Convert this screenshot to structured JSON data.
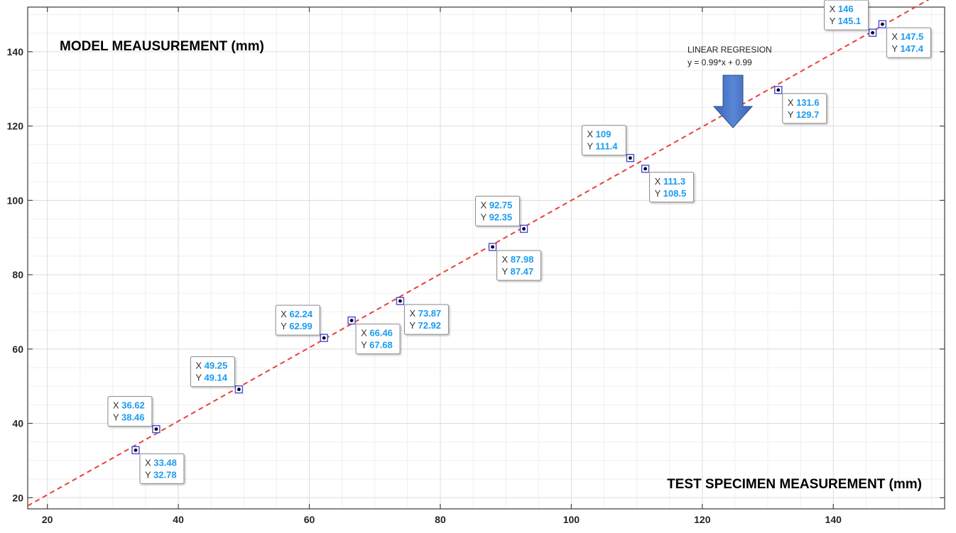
{
  "chart_data": {
    "type": "line",
    "title": "",
    "xlabel": "TEST SPECIMEN MEASUREMENT (mm)",
    "ylabel": "MODEL MEAUSUREMENT (mm)",
    "xlim": [
      17,
      157
    ],
    "ylim": [
      17,
      152
    ],
    "x_ticks": [
      20,
      40,
      60,
      80,
      100,
      120,
      140
    ],
    "y_ticks": [
      20,
      40,
      60,
      80,
      100,
      120,
      140
    ],
    "grid": true,
    "minor_grid": true,
    "series": [
      {
        "name": "LINEAR REGRESION",
        "style": "dashed",
        "color": "#e8413c",
        "equation": "y = 0.99*x + 0.99",
        "slope": 0.99,
        "intercept": 0.99,
        "x": [
          17,
          157
        ]
      }
    ],
    "points": [
      {
        "x": 33.48,
        "y": 32.78,
        "x_text": "33.48",
        "y_text": "32.78"
      },
      {
        "x": 36.62,
        "y": 38.46,
        "x_text": "36.62",
        "y_text": "38.46"
      },
      {
        "x": 49.25,
        "y": 49.14,
        "x_text": "49.25",
        "y_text": "49.14"
      },
      {
        "x": 62.24,
        "y": 62.99,
        "x_text": "62.24",
        "y_text": "62.99"
      },
      {
        "x": 66.46,
        "y": 67.68,
        "x_text": "66.46",
        "y_text": "67.68"
      },
      {
        "x": 73.87,
        "y": 72.92,
        "x_text": "73.87",
        "y_text": "72.92"
      },
      {
        "x": 87.98,
        "y": 87.47,
        "x_text": "87.98",
        "y_text": "87.47"
      },
      {
        "x": 92.75,
        "y": 92.35,
        "x_text": "92.75",
        "y_text": "92.35"
      },
      {
        "x": 109,
        "y": 111.4,
        "x_text": "109",
        "y_text": "111.4"
      },
      {
        "x": 111.3,
        "y": 108.5,
        "x_text": "111.3",
        "y_text": "108.5"
      },
      {
        "x": 131.6,
        "y": 129.7,
        "x_text": "131.6",
        "y_text": "129.7"
      },
      {
        "x": 146,
        "y": 145.1,
        "x_text": "146",
        "y_text": "145.1"
      },
      {
        "x": 147.5,
        "y": 147.4,
        "x_text": "147.5",
        "y_text": "147.4"
      }
    ],
    "datatip_labels": {
      "x": "X",
      "y": "Y"
    },
    "annotation": {
      "title": "LINEAR REGRESION",
      "equation": "y = 0.99*x + 0.99",
      "marker": "down-arrow"
    },
    "colors": {
      "regression": "#e8413c",
      "datatip_value": "#1a9bf0",
      "marker_edge": "#4a4adf",
      "arrow": "#4472c4",
      "grid_major": "#dcdcdc",
      "grid_minor": "#efefef"
    }
  }
}
